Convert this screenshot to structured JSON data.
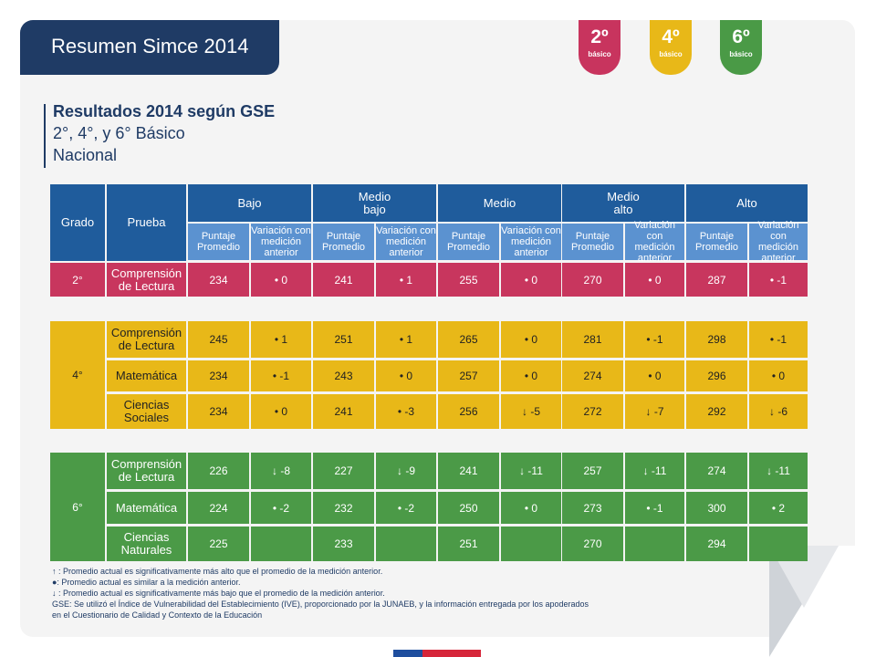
{
  "header": {
    "title": "Resumen Simce 2014",
    "badges": [
      {
        "number": "2º",
        "label": "básico",
        "color": "#c8345e"
      },
      {
        "number": "4º",
        "label": "básico",
        "color": "#e8b818"
      },
      {
        "number": "6º",
        "label": "básico",
        "color": "#4a9a46"
      }
    ]
  },
  "heading": {
    "title": "Resultados 2014 según GSE",
    "subtitle": "2°, 4°, y 6° Básico",
    "scope": "Nacional"
  },
  "table": {
    "col_grado": "Grado",
    "col_prueba": "Prueba",
    "groups": [
      "Bajo",
      "Medio\nbajo",
      "Medio",
      "Medio\nalto",
      "Alto"
    ],
    "subheaders": [
      "Puntaje\nPromedio",
      "Variación con\nmedición\nanterior"
    ],
    "blocks": [
      {
        "grado": "2°",
        "color_class": "r2",
        "rows": [
          {
            "prueba": "Comprensión\nde Lectura",
            "cells": [
              "234",
              "• 0",
              "241",
              "• 1",
              "255",
              "• 0",
              "270",
              "• 0",
              "287",
              "• -1"
            ]
          }
        ]
      },
      {
        "grado": "4°",
        "color_class": "r4",
        "rows": [
          {
            "prueba": "Comprensión\nde Lectura",
            "cells": [
              "245",
              "• 1",
              "251",
              "• 1",
              "265",
              "• 0",
              "281",
              "• -1",
              "298",
              "• -1"
            ]
          },
          {
            "prueba": "Matemática",
            "cells": [
              "234",
              "• -1",
              "243",
              "• 0",
              "257",
              "• 0",
              "274",
              "• 0",
              "296",
              "• 0"
            ]
          },
          {
            "prueba": "Ciencias\nSociales",
            "cells": [
              "234",
              "• 0",
              "241",
              "• -3",
              "256",
              "↓ -5",
              "272",
              "↓ -7",
              "292",
              "↓ -6"
            ]
          }
        ]
      },
      {
        "grado": "6°",
        "color_class": "r6",
        "rows": [
          {
            "prueba": "Comprensión\nde Lectura",
            "cells": [
              "226",
              "↓ -8",
              "227",
              "↓ -9",
              "241",
              "↓ -11",
              "257",
              "↓ -11",
              "274",
              "↓ -11"
            ]
          },
          {
            "prueba": "Matemática",
            "cells": [
              "224",
              "• -2",
              "232",
              "• -2",
              "250",
              "• 0",
              "273",
              "• -1",
              "300",
              "• 2"
            ]
          },
          {
            "prueba": "Ciencias\nNaturales",
            "cells": [
              "225",
              "",
              "233",
              "",
              "251",
              "",
              "270",
              "",
              "294",
              ""
            ]
          }
        ]
      }
    ]
  },
  "notes": [
    "↑ : Promedio actual es significativamente más alto que el promedio de la medición anterior.",
    "●: Promedio actual es similar a la medición anterior.",
    "↓ : Promedio actual es significativamente más bajo que el promedio de la medición anterior.",
    "GSE: Se utilizó el Índice de Vulnerabilidad del Establecimiento (IVE), proporcionado por la JUNAEB, y la información entregada por los apoderados",
    "en el Cuestionario de Calidad y Contexto de la Educación"
  ]
}
